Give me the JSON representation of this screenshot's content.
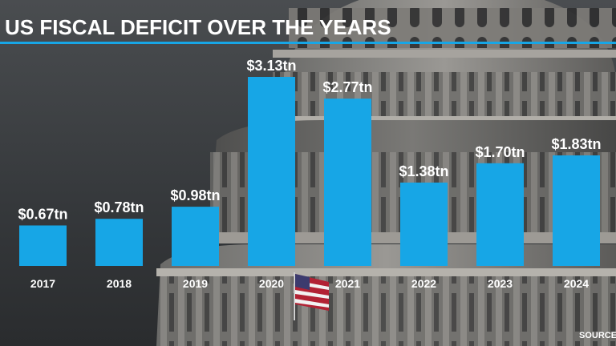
{
  "title": "US FISCAL DEFICIT OVER THE YEARS",
  "source": "SOURCE",
  "colors": {
    "bar": "#17a6e6",
    "text": "#ffffff",
    "accent_rule": "#17a6e6"
  },
  "chart_data": {
    "type": "bar",
    "title": "US FISCAL DEFICIT OVER THE YEARS",
    "categories": [
      "2017",
      "2018",
      "2019",
      "2020",
      "2021",
      "2022",
      "2023",
      "2024"
    ],
    "values": [
      0.67,
      0.78,
      0.98,
      3.13,
      2.77,
      1.38,
      1.7,
      1.83
    ],
    "data_labels": [
      "$0.67tn",
      "$0.78tn",
      "$0.98tn",
      "$3.13tn",
      "$2.77tn",
      "$1.38tn",
      "$1.70tn",
      "$1.83tn"
    ],
    "xlabel": "",
    "ylabel": "",
    "ylim": [
      0,
      3.13
    ],
    "grid": false,
    "legend": "none"
  }
}
